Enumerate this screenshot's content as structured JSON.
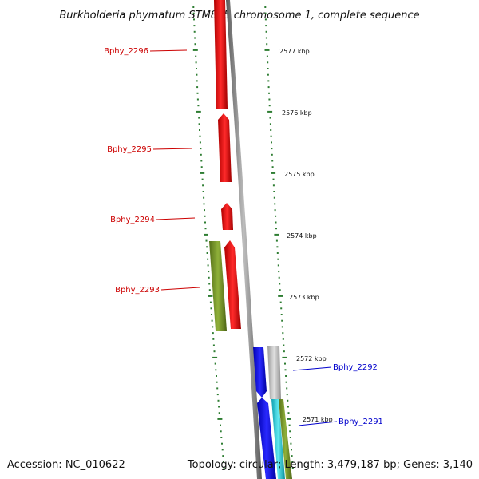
{
  "title": "Burkholderia phymatum STM815 chromosome 1, complete sequence",
  "footer": {
    "accession": "Accession: NC_010622",
    "summary": "Topology: circular; Length: 3,479,187 bp; Genes: 3,140"
  },
  "ticks": [
    {
      "label": "2577 kbp",
      "position_kbp": 2577
    },
    {
      "label": "2576 kbp",
      "position_kbp": 2576
    },
    {
      "label": "2575 kbp",
      "position_kbp": 2575
    },
    {
      "label": "2574 kbp",
      "position_kbp": 2574
    },
    {
      "label": "2573 kbp",
      "position_kbp": 2573
    },
    {
      "label": "2572 kbp",
      "position_kbp": 2572
    },
    {
      "label": "2571 kbp",
      "position_kbp": 2571
    }
  ],
  "genes": [
    {
      "label": "Bphy_2296",
      "color": "#cc0000"
    },
    {
      "label": "Bphy_2295",
      "color": "#cc0000"
    },
    {
      "label": "Bphy_2294",
      "color": "#cc0000"
    },
    {
      "label": "Bphy_2293",
      "color": "#cc0000"
    },
    {
      "label": "Bphy_2292",
      "color": "#0000cc"
    },
    {
      "label": "Bphy_2291",
      "color": "#0000cc"
    }
  ],
  "colors": {
    "forward_cds": "#e00000",
    "reverse_cds": "#0000ee",
    "green_track": "#6b8e23",
    "grey_track": "#bdbdbd",
    "cyan_track": "#20c0d0",
    "backbone": "#808080",
    "tick_marks": "#2e7d32"
  }
}
